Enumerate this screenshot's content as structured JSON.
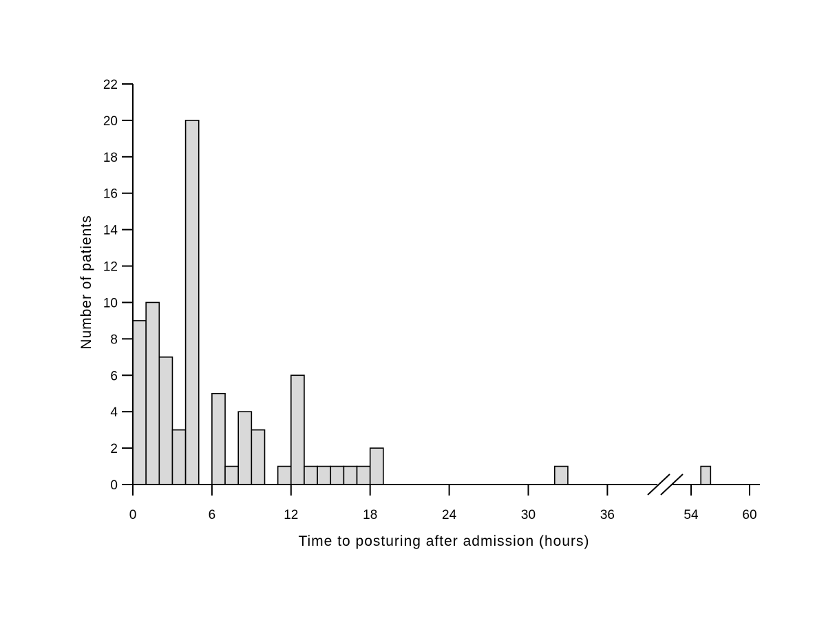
{
  "chart_data": {
    "type": "bar",
    "title": "",
    "xlabel": "Time to posturing after admission (hours)",
    "ylabel": "Number of patients",
    "ylim": [
      0,
      22
    ],
    "yticks": [
      "0",
      "2",
      "4",
      "6",
      "8",
      "10",
      "12",
      "14",
      "16",
      "18",
      "20",
      "22"
    ],
    "xlim": [
      0,
      60
    ],
    "xticks": [
      "0",
      "6",
      "12",
      "18",
      "24",
      "30",
      "36",
      "54",
      "60"
    ],
    "x_axis_break": true,
    "bin_width_hours": 1,
    "bar_color": "#d9d9d9",
    "grid": false,
    "bins": [
      {
        "start_hour": 0,
        "count": 9
      },
      {
        "start_hour": 1,
        "count": 10
      },
      {
        "start_hour": 2,
        "count": 7
      },
      {
        "start_hour": 3,
        "count": 3
      },
      {
        "start_hour": 4,
        "count": 20
      },
      {
        "start_hour": 6,
        "count": 5
      },
      {
        "start_hour": 7,
        "count": 1
      },
      {
        "start_hour": 8,
        "count": 4
      },
      {
        "start_hour": 9,
        "count": 3
      },
      {
        "start_hour": 11,
        "count": 1
      },
      {
        "start_hour": 12,
        "count": 6
      },
      {
        "start_hour": 13,
        "count": 1
      },
      {
        "start_hour": 14,
        "count": 1
      },
      {
        "start_hour": 15,
        "count": 1
      },
      {
        "start_hour": 16,
        "count": 1
      },
      {
        "start_hour": 17,
        "count": 1
      },
      {
        "start_hour": 18,
        "count": 2
      },
      {
        "start_hour": 32,
        "count": 1
      },
      {
        "start_hour": 55,
        "count": 1
      }
    ]
  }
}
